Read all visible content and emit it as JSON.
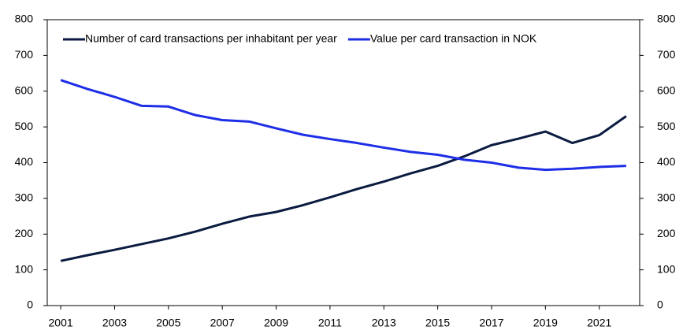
{
  "chart_data": {
    "type": "line",
    "x": [
      2001,
      2002,
      2003,
      2004,
      2005,
      2006,
      2007,
      2008,
      2009,
      2010,
      2011,
      2012,
      2013,
      2014,
      2015,
      2016,
      2017,
      2018,
      2019,
      2020,
      2021,
      2022
    ],
    "series": [
      {
        "name": "Number of card transactions per inhabitant per year",
        "color": "#0b1a40",
        "values": [
          125,
          141,
          156,
          172,
          188,
          207,
          229,
          249,
          262,
          281,
          303,
          326,
          347,
          370,
          391,
          418,
          449,
          467,
          487,
          455,
          477,
          530
        ]
      },
      {
        "name": "Value per card transaction in NOK",
        "color": "#1e2ee6",
        "values": [
          631,
          606,
          584,
          559,
          557,
          533,
          519,
          515,
          496,
          478,
          466,
          455,
          442,
          430,
          422,
          408,
          400,
          386,
          380,
          383,
          388,
          391
        ]
      }
    ],
    "xlim": [
      2000.5,
      2022.5
    ],
    "xticks": [
      2001,
      2003,
      2005,
      2007,
      2009,
      2011,
      2013,
      2015,
      2017,
      2019,
      2021
    ],
    "ylim": [
      0,
      800
    ],
    "yticks": [
      0,
      100,
      200,
      300,
      400,
      500,
      600,
      700,
      800
    ],
    "y2lim": [
      0,
      800
    ],
    "y2ticks": [
      0,
      100,
      200,
      300,
      400,
      500,
      600,
      700,
      800
    ],
    "grid": false,
    "legend": "top"
  }
}
